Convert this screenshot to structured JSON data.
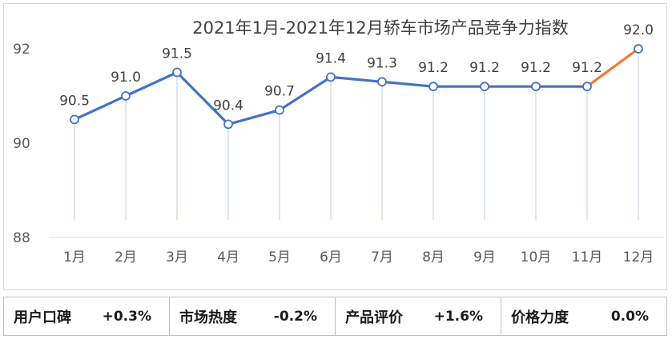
{
  "chart_data": {
    "type": "line",
    "title": "2021年1月-2021年12月轿车市场产品竞争力指数",
    "categories": [
      "1月",
      "2月",
      "3月",
      "4月",
      "5月",
      "6月",
      "7月",
      "8月",
      "9月",
      "10月",
      "11月",
      "12月"
    ],
    "series": [
      {
        "values": [
          90.5,
          91.0,
          91.5,
          90.4,
          90.7,
          91.4,
          91.3,
          91.2,
          91.2,
          91.2,
          91.2,
          92.0
        ]
      }
    ],
    "data_labels": [
      "90.5",
      "91.0",
      "91.5",
      "90.4",
      "90.7",
      "91.4",
      "91.3",
      "91.2",
      "91.2",
      "91.2",
      "91.2",
      "92.0"
    ],
    "ylim": [
      88,
      92
    ],
    "yticks": [
      88,
      90,
      92
    ],
    "grid": false,
    "colors": {
      "line": "#4472c4",
      "last_segment": "#ed7d31",
      "marker_fill": "#ffffff",
      "drop_line": "#c9d6e8"
    }
  },
  "metrics": [
    {
      "label": "用户口碑",
      "value": "+0.3%"
    },
    {
      "label": "市场热度",
      "value": "-0.2%"
    },
    {
      "label": "产品评价",
      "value": "+1.6%"
    },
    {
      "label": "价格力度",
      "value": "0.0%"
    }
  ]
}
